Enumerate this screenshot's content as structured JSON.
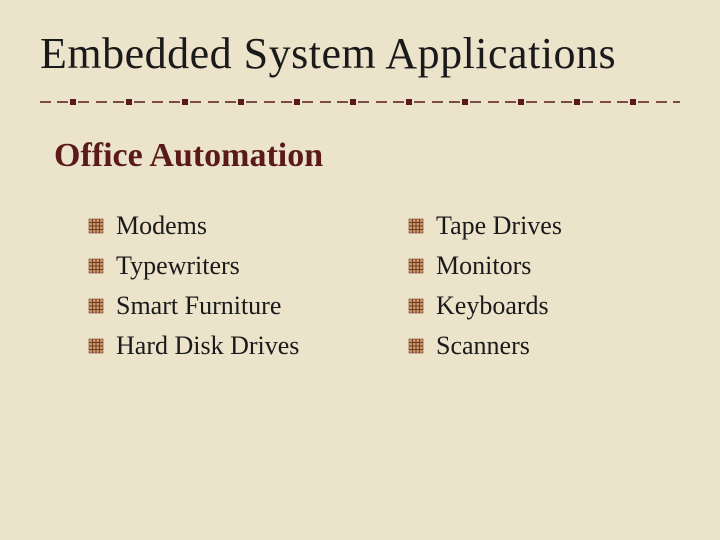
{
  "slide": {
    "title": "Embedded System Applications",
    "section_heading": "Office Automation",
    "columns": {
      "left": [
        "Modems",
        "Typewriters",
        "Smart Furniture",
        "Hard Disk Drives"
      ],
      "right": [
        "Tape Drives",
        "Monitors",
        "Keyboards",
        "Scanners"
      ]
    }
  },
  "style": {
    "background_color": "#ece3cb",
    "title_color": "#1a1a1a",
    "section_heading_color": "#5a1a1a",
    "body_text_color": "#1a1a1a",
    "divider_color": "#5a1a1a",
    "bullet_accent_color": "#7a3a2a",
    "bullet_fill_color": "#c9a46a",
    "title_fontsize": 44,
    "section_fontsize": 34,
    "body_fontsize": 26
  }
}
